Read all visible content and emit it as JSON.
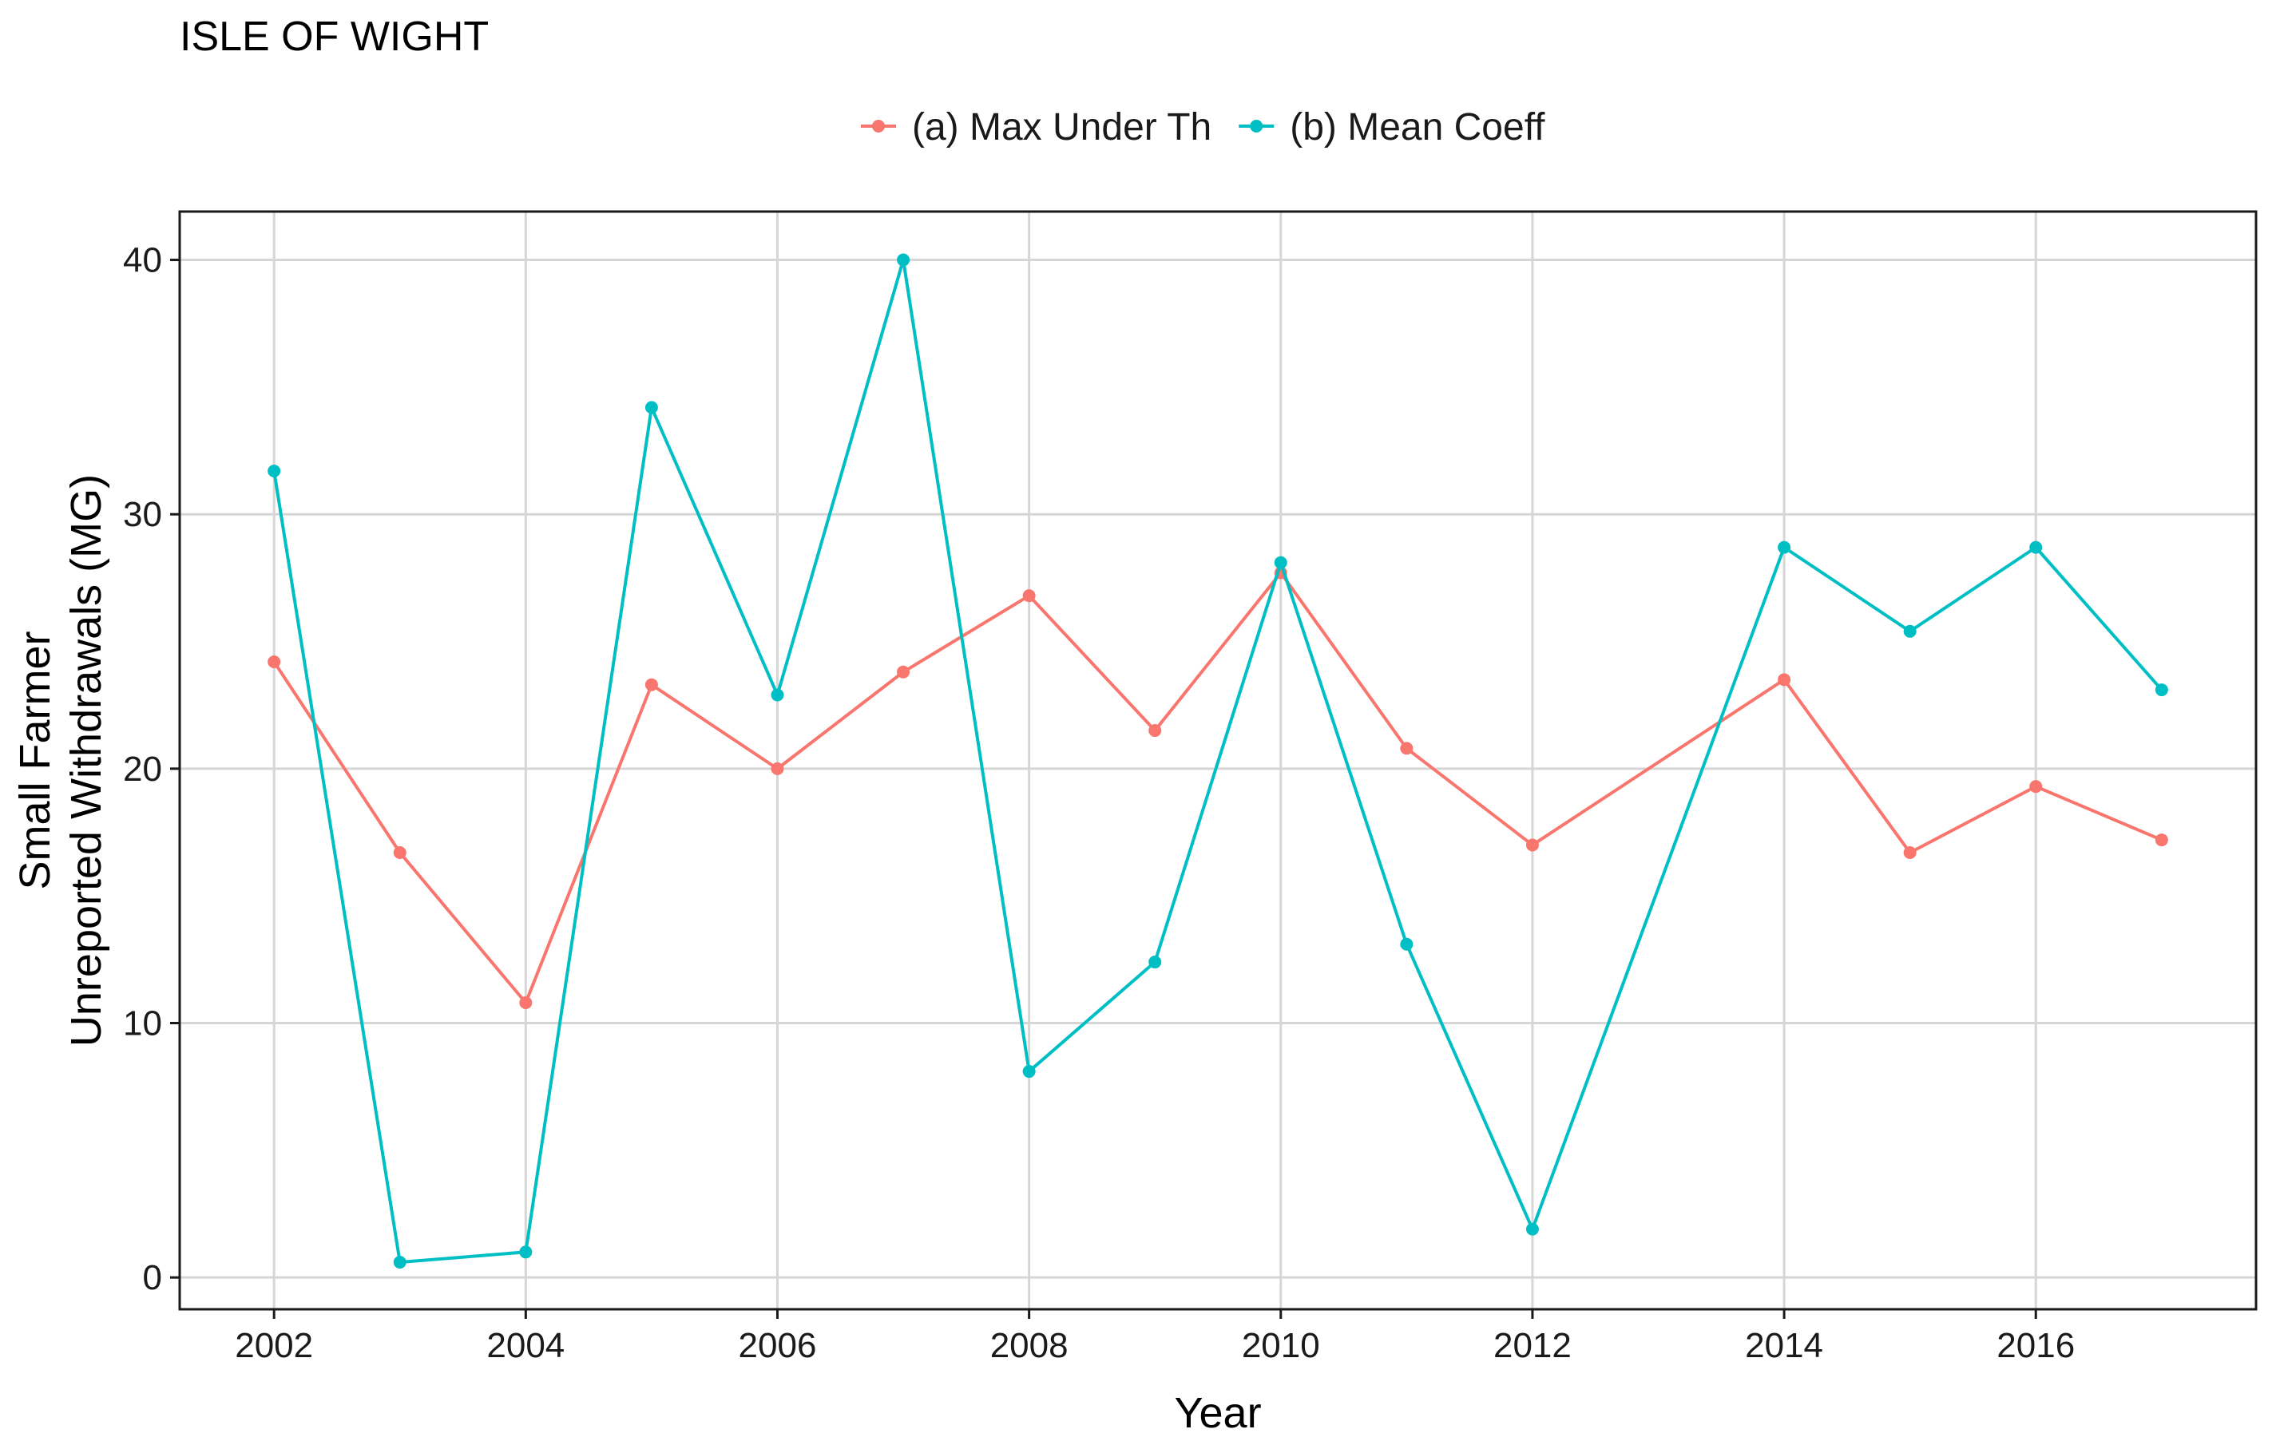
{
  "chart_data": {
    "type": "line",
    "title": "ISLE OF WIGHT",
    "xlabel": "Year",
    "ylabel_lines": [
      "Small Farmer",
      "Unreported Withdrawals (MG)"
    ],
    "xlim": [
      2001.25,
      2017.75
    ],
    "ylim": [
      -1.25,
      41.9
    ],
    "x_ticks": [
      2002,
      2004,
      2006,
      2008,
      2010,
      2012,
      2014,
      2016
    ],
    "y_ticks": [
      0,
      10,
      20,
      30,
      40
    ],
    "grid": true,
    "legend_position": "top",
    "series": [
      {
        "name": "(a) Max Under Th",
        "color": "#F8766D",
        "x": [
          2002,
          2003,
          2004,
          2005,
          2006,
          2007,
          2008,
          2009,
          2010,
          2011,
          2012,
          2014,
          2015,
          2016,
          2017
        ],
        "y": [
          24.2,
          16.7,
          10.8,
          23.3,
          20.0,
          23.8,
          26.8,
          21.5,
          27.7,
          20.8,
          17.0,
          23.5,
          16.7,
          19.3,
          17.2
        ]
      },
      {
        "name": "(b) Mean Coeff",
        "color": "#00BFC4",
        "x": [
          2002,
          2003,
          2004,
          2005,
          2006,
          2007,
          2008,
          2009,
          2010,
          2011,
          2012,
          2014,
          2015,
          2016,
          2017
        ],
        "y": [
          31.7,
          0.6,
          1.0,
          34.2,
          22.9,
          40.0,
          8.1,
          12.4,
          28.1,
          13.1,
          1.9,
          28.7,
          25.4,
          28.7,
          23.1
        ]
      }
    ]
  }
}
